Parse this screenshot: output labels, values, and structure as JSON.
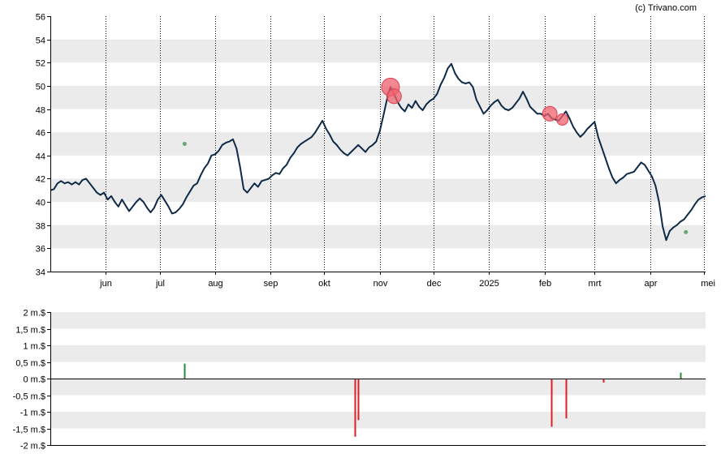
{
  "credit": "(c) Trivano.com",
  "colors": {
    "band": "#ebebeb",
    "price_line": "#0e2a47",
    "marker": "#f0606e",
    "positive": "#2e8b3a",
    "negative": "#dd1f26",
    "grid_vertical": "#000000"
  },
  "chart_data": [
    {
      "type": "line",
      "name": "price",
      "y_ticks": [
        "34",
        "36",
        "38",
        "40",
        "42",
        "44",
        "46",
        "48",
        "50",
        "52",
        "54",
        "56"
      ],
      "ylim": [
        34,
        56
      ],
      "x_tick_labels": [
        "jun",
        "jul",
        "aug",
        "sep",
        "okt",
        "nov",
        "dec",
        "2025",
        "feb",
        "mrt",
        "apr",
        "mei"
      ],
      "x_tick_days": [
        31,
        61,
        92,
        123,
        153,
        184,
        214,
        245,
        276,
        304,
        335,
        365
      ],
      "xlim": [
        0,
        366
      ],
      "grid": "vertical dotted at month starts, alternating horizontal bands",
      "points": [
        [
          0,
          41.0
        ],
        [
          2,
          41.1
        ],
        [
          4,
          41.6
        ],
        [
          6,
          41.8
        ],
        [
          8,
          41.6
        ],
        [
          10,
          41.7
        ],
        [
          12,
          41.5
        ],
        [
          14,
          41.7
        ],
        [
          16,
          41.5
        ],
        [
          18,
          41.9
        ],
        [
          20,
          42.0
        ],
        [
          22,
          41.6
        ],
        [
          24,
          41.2
        ],
        [
          26,
          40.8
        ],
        [
          28,
          40.6
        ],
        [
          30,
          40.8
        ],
        [
          32,
          40.2
        ],
        [
          34,
          40.5
        ],
        [
          36,
          40.0
        ],
        [
          38,
          39.6
        ],
        [
          40,
          40.2
        ],
        [
          42,
          39.7
        ],
        [
          44,
          39.2
        ],
        [
          46,
          39.6
        ],
        [
          48,
          40.0
        ],
        [
          50,
          40.3
        ],
        [
          52,
          40.0
        ],
        [
          54,
          39.5
        ],
        [
          56,
          39.1
        ],
        [
          58,
          39.5
        ],
        [
          60,
          40.2
        ],
        [
          62,
          40.6
        ],
        [
          64,
          40.1
        ],
        [
          66,
          39.6
        ],
        [
          68,
          39.0
        ],
        [
          70,
          39.1
        ],
        [
          72,
          39.4
        ],
        [
          74,
          39.8
        ],
        [
          76,
          40.4
        ],
        [
          78,
          40.9
        ],
        [
          80,
          41.4
        ],
        [
          82,
          41.6
        ],
        [
          84,
          42.3
        ],
        [
          86,
          42.9
        ],
        [
          88,
          43.3
        ],
        [
          90,
          44.0
        ],
        [
          92,
          44.1
        ],
        [
          94,
          44.4
        ],
        [
          96,
          44.9
        ],
        [
          98,
          45.1
        ],
        [
          100,
          45.2
        ],
        [
          102,
          45.4
        ],
        [
          104,
          44.6
        ],
        [
          106,
          43.0
        ],
        [
          108,
          41.1
        ],
        [
          110,
          40.8
        ],
        [
          112,
          41.2
        ],
        [
          114,
          41.6
        ],
        [
          116,
          41.3
        ],
        [
          118,
          41.8
        ],
        [
          120,
          41.9
        ],
        [
          122,
          42.0
        ],
        [
          124,
          42.3
        ],
        [
          126,
          42.5
        ],
        [
          128,
          42.4
        ],
        [
          130,
          42.9
        ],
        [
          132,
          43.2
        ],
        [
          134,
          43.8
        ],
        [
          136,
          44.2
        ],
        [
          138,
          44.7
        ],
        [
          140,
          45.0
        ],
        [
          142,
          45.2
        ],
        [
          144,
          45.4
        ],
        [
          146,
          45.6
        ],
        [
          148,
          46.0
        ],
        [
          150,
          46.5
        ],
        [
          152,
          47.0
        ],
        [
          154,
          46.3
        ],
        [
          156,
          45.8
        ],
        [
          158,
          45.2
        ],
        [
          160,
          44.9
        ],
        [
          162,
          44.5
        ],
        [
          164,
          44.2
        ],
        [
          166,
          44.0
        ],
        [
          168,
          44.3
        ],
        [
          170,
          44.6
        ],
        [
          172,
          44.9
        ],
        [
          174,
          44.6
        ],
        [
          176,
          44.3
        ],
        [
          178,
          44.7
        ],
        [
          180,
          44.9
        ],
        [
          182,
          45.2
        ],
        [
          184,
          46.1
        ],
        [
          186,
          47.4
        ],
        [
          188,
          48.8
        ],
        [
          190,
          49.9
        ],
        [
          192,
          49.3
        ],
        [
          194,
          48.6
        ],
        [
          196,
          48.1
        ],
        [
          198,
          47.8
        ],
        [
          200,
          48.4
        ],
        [
          202,
          48.1
        ],
        [
          204,
          48.7
        ],
        [
          206,
          48.2
        ],
        [
          208,
          47.9
        ],
        [
          210,
          48.4
        ],
        [
          212,
          48.7
        ],
        [
          214,
          48.9
        ],
        [
          216,
          49.3
        ],
        [
          218,
          50.1
        ],
        [
          220,
          50.7
        ],
        [
          222,
          51.5
        ],
        [
          224,
          51.9
        ],
        [
          226,
          51.1
        ],
        [
          228,
          50.6
        ],
        [
          230,
          50.3
        ],
        [
          232,
          50.2
        ],
        [
          234,
          50.3
        ],
        [
          236,
          49.9
        ],
        [
          238,
          48.8
        ],
        [
          240,
          48.2
        ],
        [
          242,
          47.6
        ],
        [
          244,
          47.9
        ],
        [
          246,
          48.3
        ],
        [
          248,
          48.6
        ],
        [
          250,
          48.8
        ],
        [
          252,
          48.3
        ],
        [
          254,
          48.0
        ],
        [
          256,
          47.9
        ],
        [
          258,
          48.1
        ],
        [
          260,
          48.5
        ],
        [
          262,
          48.9
        ],
        [
          264,
          49.5
        ],
        [
          266,
          48.9
        ],
        [
          268,
          48.2
        ],
        [
          270,
          47.9
        ],
        [
          272,
          47.6
        ],
        [
          274,
          47.6
        ],
        [
          276,
          47.4
        ],
        [
          278,
          47.6
        ],
        [
          280,
          47.2
        ],
        [
          282,
          47.1
        ],
        [
          284,
          47.0
        ],
        [
          286,
          47.4
        ],
        [
          288,
          47.8
        ],
        [
          290,
          47.2
        ],
        [
          292,
          46.5
        ],
        [
          294,
          46.0
        ],
        [
          296,
          45.6
        ],
        [
          298,
          45.9
        ],
        [
          300,
          46.3
        ],
        [
          302,
          46.6
        ],
        [
          304,
          46.9
        ],
        [
          306,
          45.6
        ],
        [
          308,
          44.7
        ],
        [
          310,
          43.8
        ],
        [
          312,
          42.9
        ],
        [
          314,
          42.1
        ],
        [
          316,
          41.6
        ],
        [
          318,
          41.9
        ],
        [
          320,
          42.1
        ],
        [
          322,
          42.4
        ],
        [
          324,
          42.5
        ],
        [
          326,
          42.6
        ],
        [
          328,
          43.0
        ],
        [
          330,
          43.4
        ],
        [
          332,
          43.2
        ],
        [
          334,
          42.7
        ],
        [
          336,
          42.2
        ],
        [
          338,
          41.4
        ],
        [
          340,
          40.0
        ],
        [
          342,
          37.9
        ],
        [
          344,
          36.7
        ],
        [
          346,
          37.5
        ],
        [
          348,
          37.8
        ],
        [
          350,
          38.0
        ],
        [
          352,
          38.3
        ],
        [
          354,
          38.5
        ],
        [
          356,
          38.9
        ],
        [
          358,
          39.3
        ],
        [
          360,
          39.8
        ],
        [
          362,
          40.2
        ],
        [
          364,
          40.4
        ],
        [
          366,
          40.5
        ]
      ],
      "markers": [
        {
          "x": 190,
          "y": 49.9,
          "size": "large"
        },
        {
          "x": 192,
          "y": 49.1,
          "size": "medium"
        },
        {
          "x": 279,
          "y": 47.6,
          "size": "medium"
        },
        {
          "x": 286,
          "y": 47.1,
          "size": "small"
        }
      ],
      "small_markers": [
        {
          "x": 75,
          "y": 45.0,
          "color": "positive"
        },
        {
          "x": 355,
          "y": 37.4,
          "color": "positive"
        }
      ]
    },
    {
      "type": "bar",
      "name": "volume",
      "y_ticks": [
        "-2 m.$",
        "-1,5 m.$",
        "-1 m.$",
        "-0,5 m.$",
        "0 m.$",
        "0,5 m.$",
        "1 m.$",
        "1,5 m.$",
        "2 m.$"
      ],
      "ylim": [
        -2,
        2
      ],
      "xlim": [
        0,
        366
      ],
      "bars": [
        {
          "x": 75,
          "value": 0.45
        },
        {
          "x": 170,
          "value": -1.75
        },
        {
          "x": 172,
          "value": -1.25
        },
        {
          "x": 280,
          "value": -1.45
        },
        {
          "x": 288,
          "value": -1.2
        },
        {
          "x": 309,
          "value": -0.12
        },
        {
          "x": 352,
          "value": 0.18
        }
      ]
    }
  ]
}
